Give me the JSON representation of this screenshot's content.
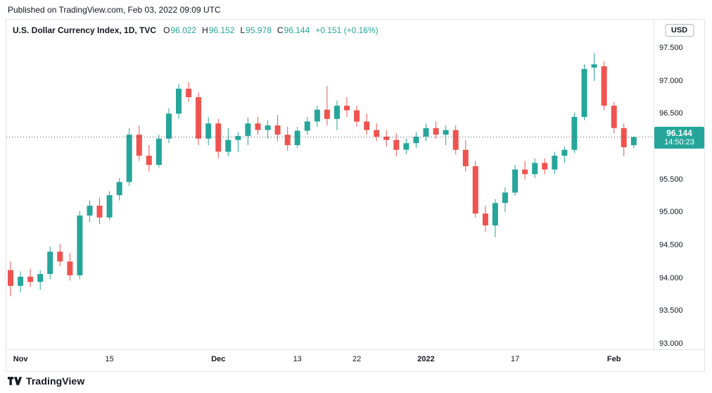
{
  "page": {
    "published_line": "Published on TradingView.com, Feb 03, 2022 09:09 UTC",
    "brand": "TradingView"
  },
  "legend": {
    "title": "U.S. Dollar Currency Index, 1D, TVC",
    "ohlc": [
      {
        "label": "O",
        "value": "96.022"
      },
      {
        "label": "H",
        "value": "96.152"
      },
      {
        "label": "L",
        "value": "95.978"
      },
      {
        "label": "C",
        "value": "96.144"
      }
    ],
    "change": "+0.151 (+0.16%)"
  },
  "axis": {
    "currency_badge": "USD"
  },
  "price_label": {
    "price": "96.144",
    "countdown": "14:50:23"
  },
  "colors": {
    "up": "#26a69a",
    "down": "#ef5350",
    "label_bg": "#26a69a",
    "price_line": "#50535e",
    "text": "#131722",
    "border": "#e0e3eb"
  },
  "chart_data": {
    "type": "candlestick",
    "title": "U.S. Dollar Currency Index, 1D, TVC",
    "ylabel": "USD",
    "ylim": [
      92.9,
      97.8
    ],
    "grid": false,
    "legend_position": "top-left",
    "last_price": 96.144,
    "yticks": [
      "97.500",
      "97.000",
      "96.500",
      "96.000",
      "95.500",
      "95.000",
      "94.500",
      "94.000",
      "93.500",
      "93.000"
    ],
    "xticks": [
      {
        "label": "Nov",
        "index": 1,
        "strong": true
      },
      {
        "label": "15",
        "index": 10,
        "strong": false
      },
      {
        "label": "Dec",
        "index": 21,
        "strong": true
      },
      {
        "label": "13",
        "index": 29,
        "strong": false
      },
      {
        "label": "22",
        "index": 35,
        "strong": false
      },
      {
        "label": "2022",
        "index": 42,
        "strong": true
      },
      {
        "label": "17",
        "index": 51,
        "strong": false
      },
      {
        "label": "Feb",
        "index": 61,
        "strong": true
      }
    ],
    "candles": [
      [
        94.12,
        94.25,
        93.72,
        93.88
      ],
      [
        93.88,
        94.1,
        93.78,
        94.02
      ],
      [
        94.02,
        94.14,
        93.86,
        93.94
      ],
      [
        93.94,
        94.12,
        93.82,
        94.06
      ],
      [
        94.06,
        94.48,
        93.98,
        94.4
      ],
      [
        94.4,
        94.52,
        94.18,
        94.25
      ],
      [
        94.25,
        94.38,
        93.96,
        94.04
      ],
      [
        94.04,
        95.02,
        93.98,
        94.95
      ],
      [
        94.95,
        95.18,
        94.85,
        95.1
      ],
      [
        95.1,
        95.22,
        94.82,
        94.92
      ],
      [
        94.92,
        95.32,
        94.88,
        95.26
      ],
      [
        95.26,
        95.52,
        95.18,
        95.46
      ],
      [
        95.46,
        96.28,
        95.4,
        96.18
      ],
      [
        96.18,
        96.32,
        95.78,
        95.86
      ],
      [
        95.86,
        96.02,
        95.62,
        95.72
      ],
      [
        95.72,
        96.18,
        95.68,
        96.12
      ],
      [
        96.12,
        96.58,
        96.05,
        96.5
      ],
      [
        96.5,
        96.95,
        96.42,
        96.88
      ],
      [
        96.88,
        96.98,
        96.68,
        96.75
      ],
      [
        96.75,
        96.82,
        96.02,
        96.12
      ],
      [
        96.12,
        96.45,
        96.02,
        96.35
      ],
      [
        96.35,
        96.42,
        95.82,
        95.92
      ],
      [
        95.92,
        96.28,
        95.85,
        96.1
      ],
      [
        96.1,
        96.22,
        95.92,
        96.16
      ],
      [
        96.16,
        96.44,
        96.02,
        96.35
      ],
      [
        96.35,
        96.45,
        96.18,
        96.25
      ],
      [
        96.25,
        96.4,
        96.12,
        96.32
      ],
      [
        96.32,
        96.48,
        96.08,
        96.18
      ],
      [
        96.18,
        96.3,
        95.94,
        96.02
      ],
      [
        96.02,
        96.3,
        95.98,
        96.24
      ],
      [
        96.24,
        96.45,
        96.18,
        96.38
      ],
      [
        96.38,
        96.62,
        96.3,
        96.56
      ],
      [
        96.56,
        96.92,
        96.32,
        96.42
      ],
      [
        96.42,
        96.7,
        96.25,
        96.62
      ],
      [
        96.62,
        96.75,
        96.45,
        96.55
      ],
      [
        96.55,
        96.62,
        96.3,
        96.38
      ],
      [
        96.38,
        96.5,
        96.18,
        96.25
      ],
      [
        96.25,
        96.35,
        96.08,
        96.15
      ],
      [
        96.15,
        96.25,
        96.0,
        96.1
      ],
      [
        96.1,
        96.2,
        95.85,
        95.95
      ],
      [
        95.95,
        96.12,
        95.88,
        96.05
      ],
      [
        96.05,
        96.22,
        95.98,
        96.15
      ],
      [
        96.15,
        96.35,
        96.08,
        96.28
      ],
      [
        96.28,
        96.38,
        96.12,
        96.18
      ],
      [
        96.18,
        96.32,
        96.02,
        96.25
      ],
      [
        96.25,
        96.32,
        95.88,
        95.95
      ],
      [
        95.95,
        96.1,
        95.62,
        95.7
      ],
      [
        95.7,
        95.78,
        94.92,
        94.98
      ],
      [
        94.98,
        95.1,
        94.7,
        94.8
      ],
      [
        94.8,
        95.2,
        94.62,
        95.14
      ],
      [
        95.14,
        95.38,
        95.0,
        95.3
      ],
      [
        95.3,
        95.72,
        95.25,
        95.65
      ],
      [
        95.65,
        95.78,
        95.5,
        95.58
      ],
      [
        95.58,
        95.82,
        95.52,
        95.75
      ],
      [
        95.75,
        95.82,
        95.58,
        95.65
      ],
      [
        95.65,
        95.92,
        95.58,
        95.86
      ],
      [
        95.86,
        96.0,
        95.75,
        95.95
      ],
      [
        95.95,
        96.52,
        95.9,
        96.45
      ],
      [
        96.45,
        97.25,
        96.4,
        97.18
      ],
      [
        97.2,
        97.42,
        97.0,
        97.25
      ],
      [
        97.22,
        97.3,
        96.55,
        96.62
      ],
      [
        96.62,
        96.68,
        96.2,
        96.28
      ],
      [
        96.28,
        96.35,
        95.85,
        95.99
      ],
      [
        96.02,
        96.152,
        95.978,
        96.144
      ]
    ]
  }
}
